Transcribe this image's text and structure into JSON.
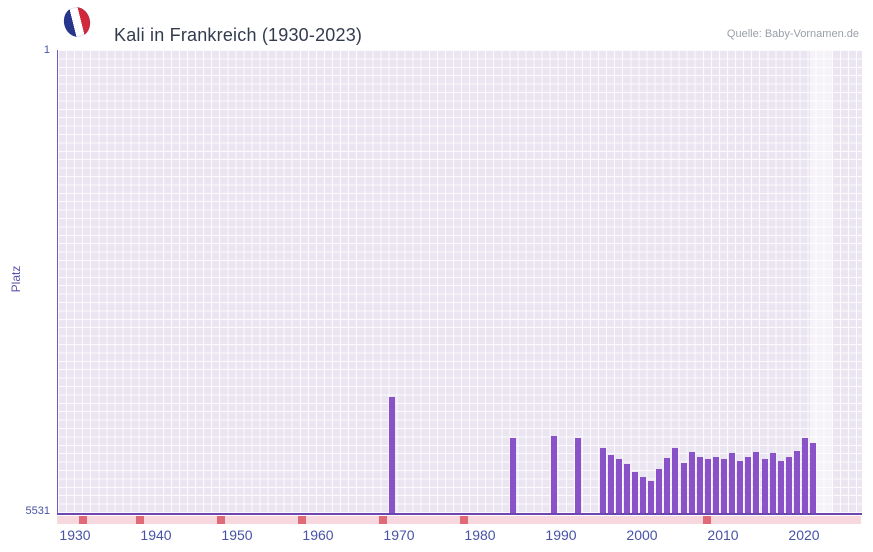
{
  "header": {
    "title": "Kali in Frankreich (1930-2023)",
    "source": "Quelle: Baby-Vornamen.de",
    "flag_colors": {
      "blue": "#27358c",
      "white": "#ffffff",
      "red": "#d2283b"
    }
  },
  "chart_data": {
    "type": "bar",
    "title": "Kali in Frankreich (1930-2023)",
    "ylabel": "Platz",
    "y_axis": {
      "top_label": "1",
      "bottom_label": "5531",
      "min": 1,
      "max": 5531,
      "inverted": true
    },
    "x_ticks": [
      1930,
      1940,
      1950,
      1960,
      1970,
      1980,
      1990,
      2000,
      2010,
      2020
    ],
    "x_range": {
      "min": 1928,
      "max": 2027
    },
    "grid": true,
    "legend": false,
    "bars": [
      {
        "year": 1969,
        "rank": 4150
      },
      {
        "year": 1984,
        "rank": 4640
      },
      {
        "year": 1989,
        "rank": 4610
      },
      {
        "year": 1992,
        "rank": 4640
      },
      {
        "year": 1995,
        "rank": 4750
      },
      {
        "year": 1996,
        "rank": 4840
      },
      {
        "year": 1997,
        "rank": 4890
      },
      {
        "year": 1998,
        "rank": 4940
      },
      {
        "year": 1999,
        "rank": 5040
      },
      {
        "year": 2000,
        "rank": 5100
      },
      {
        "year": 2001,
        "rank": 5150
      },
      {
        "year": 2002,
        "rank": 5010
      },
      {
        "year": 2003,
        "rank": 4870
      },
      {
        "year": 2004,
        "rank": 4760
      },
      {
        "year": 2005,
        "rank": 4930
      },
      {
        "year": 2006,
        "rank": 4800
      },
      {
        "year": 2007,
        "rank": 4860
      },
      {
        "year": 2008,
        "rank": 4890
      },
      {
        "year": 2009,
        "rank": 4860
      },
      {
        "year": 2010,
        "rank": 4890
      },
      {
        "year": 2011,
        "rank": 4820
      },
      {
        "year": 2012,
        "rank": 4910
      },
      {
        "year": 2013,
        "rank": 4860
      },
      {
        "year": 2014,
        "rank": 4800
      },
      {
        "year": 2015,
        "rank": 4890
      },
      {
        "year": 2016,
        "rank": 4820
      },
      {
        "year": 2017,
        "rank": 4910
      },
      {
        "year": 2018,
        "rank": 4860
      },
      {
        "year": 2019,
        "rank": 4790
      },
      {
        "year": 2020,
        "rank": 4640
      },
      {
        "year": 2021,
        "rank": 4700
      }
    ],
    "no_rank_markers": [
      1931,
      1938,
      1948,
      1958,
      1968,
      1978,
      2008
    ],
    "highlight_band": {
      "from": 2020.6,
      "to": 2023.4
    },
    "colors": {
      "bar": "#8952c8",
      "plot_background": "#eae5f1",
      "grid_line": "#ffffff",
      "axis_line": "#6e46b4",
      "tick_text": "#4753a5",
      "band_light": "#f7d8df",
      "band_marker": "#e06a76"
    }
  }
}
